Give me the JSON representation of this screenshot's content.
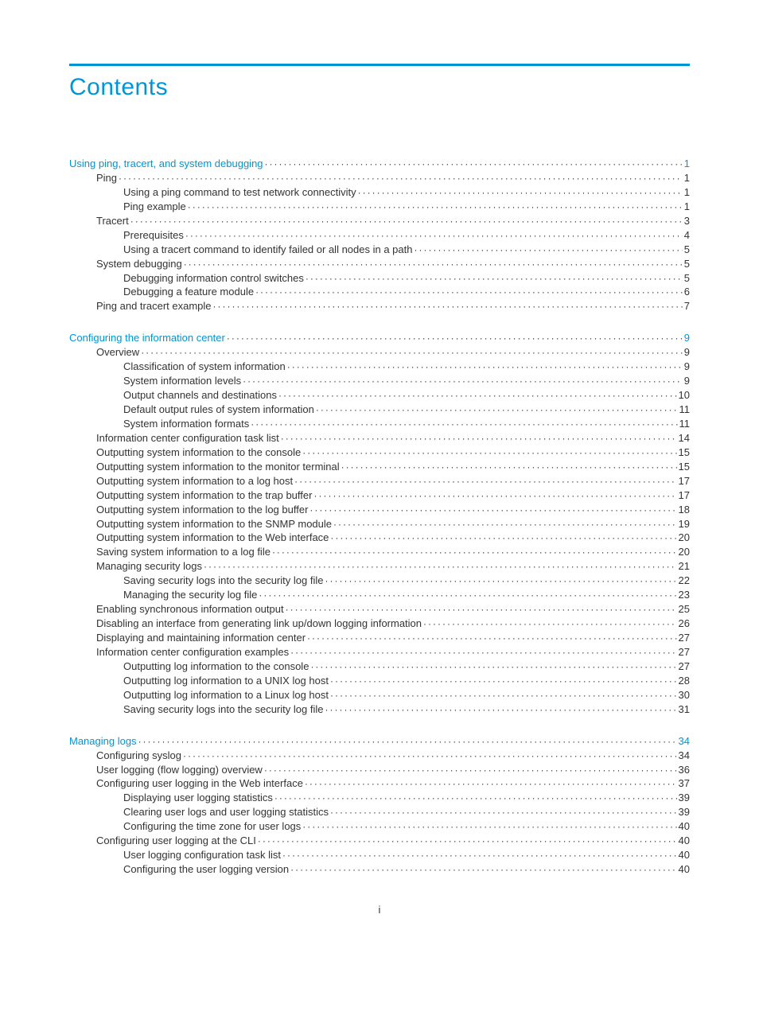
{
  "accent_color": "#0096d6",
  "text_color": "#333333",
  "title": "Contents",
  "title_fontsize": 30,
  "body_fontsize": 13,
  "footer_page": "i",
  "sections": [
    {
      "head": {
        "label": "Using ping, tracert, and system debugging",
        "page": "1"
      },
      "items": [
        {
          "lvl": 1,
          "label": "Ping",
          "page": "1"
        },
        {
          "lvl": 2,
          "label": "Using a ping command to test network connectivity",
          "page": "1"
        },
        {
          "lvl": 2,
          "label": "Ping example",
          "page": "1"
        },
        {
          "lvl": 1,
          "label": "Tracert",
          "page": "3"
        },
        {
          "lvl": 2,
          "label": "Prerequisites",
          "page": "4"
        },
        {
          "lvl": 2,
          "label": "Using a tracert command to identify failed or all nodes in a path",
          "page": "5"
        },
        {
          "lvl": 1,
          "label": "System debugging",
          "page": "5"
        },
        {
          "lvl": 2,
          "label": "Debugging information control switches",
          "page": "5"
        },
        {
          "lvl": 2,
          "label": "Debugging a feature module",
          "page": "6"
        },
        {
          "lvl": 1,
          "label": "Ping and tracert example",
          "page": "7"
        }
      ]
    },
    {
      "head": {
        "label": "Configuring the information center",
        "page": "9"
      },
      "items": [
        {
          "lvl": 1,
          "label": "Overview",
          "page": "9"
        },
        {
          "lvl": 2,
          "label": "Classification of system information",
          "page": "9"
        },
        {
          "lvl": 2,
          "label": "System information levels",
          "page": "9"
        },
        {
          "lvl": 2,
          "label": "Output channels and destinations",
          "page": "10"
        },
        {
          "lvl": 2,
          "label": "Default output rules of system information",
          "page": "11"
        },
        {
          "lvl": 2,
          "label": "System information formats",
          "page": "11"
        },
        {
          "lvl": 1,
          "label": "Information center configuration task list",
          "page": "14"
        },
        {
          "lvl": 1,
          "label": "Outputting system information to the console",
          "page": "15"
        },
        {
          "lvl": 1,
          "label": "Outputting system information to the monitor terminal",
          "page": "15"
        },
        {
          "lvl": 1,
          "label": "Outputting system information to a log host",
          "page": "17"
        },
        {
          "lvl": 1,
          "label": "Outputting system information to the trap buffer",
          "page": "17"
        },
        {
          "lvl": 1,
          "label": "Outputting system information to the log buffer",
          "page": "18"
        },
        {
          "lvl": 1,
          "label": "Outputting system information to the SNMP module",
          "page": "19"
        },
        {
          "lvl": 1,
          "label": "Outputting system information to the Web interface",
          "page": "20"
        },
        {
          "lvl": 1,
          "label": "Saving system information to a log file",
          "page": "20"
        },
        {
          "lvl": 1,
          "label": "Managing security logs",
          "page": "21"
        },
        {
          "lvl": 2,
          "label": "Saving security logs into the security log file",
          "page": "22"
        },
        {
          "lvl": 2,
          "label": "Managing the security log file",
          "page": "23"
        },
        {
          "lvl": 1,
          "label": "Enabling synchronous information output",
          "page": "25"
        },
        {
          "lvl": 1,
          "label": "Disabling an interface from generating link up/down logging information",
          "page": "26"
        },
        {
          "lvl": 1,
          "label": "Displaying and maintaining information center",
          "page": "27"
        },
        {
          "lvl": 1,
          "label": "Information center configuration examples",
          "page": "27"
        },
        {
          "lvl": 2,
          "label": "Outputting log information to the console",
          "page": "27"
        },
        {
          "lvl": 2,
          "label": "Outputting log information to a UNIX log host",
          "page": "28"
        },
        {
          "lvl": 2,
          "label": "Outputting log information to a Linux log host",
          "page": "30"
        },
        {
          "lvl": 2,
          "label": "Saving security logs into the security log file",
          "page": "31"
        }
      ]
    },
    {
      "head": {
        "label": "Managing logs",
        "page": "34"
      },
      "items": [
        {
          "lvl": 1,
          "label": "Configuring syslog",
          "page": "34"
        },
        {
          "lvl": 1,
          "label": "User logging (flow logging) overview",
          "page": "36"
        },
        {
          "lvl": 1,
          "label": "Configuring user logging in the Web interface",
          "page": "37"
        },
        {
          "lvl": 2,
          "label": "Displaying user logging statistics",
          "page": "39"
        },
        {
          "lvl": 2,
          "label": "Clearing user logs and user logging statistics",
          "page": "39"
        },
        {
          "lvl": 2,
          "label": "Configuring the time zone for user logs",
          "page": "40"
        },
        {
          "lvl": 1,
          "label": "Configuring user logging at the CLI",
          "page": "40"
        },
        {
          "lvl": 2,
          "label": "User logging configuration task list",
          "page": "40"
        },
        {
          "lvl": 2,
          "label": "Configuring the user logging version",
          "page": "40"
        }
      ]
    }
  ]
}
